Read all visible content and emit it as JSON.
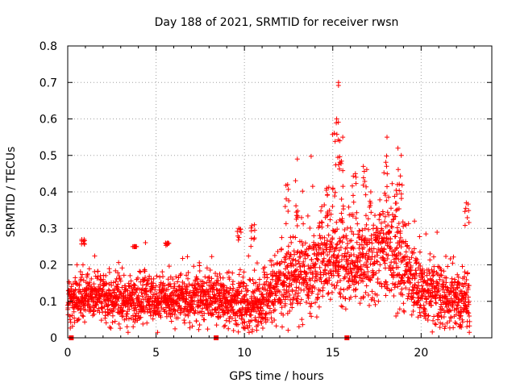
{
  "chart_data": {
    "type": "scatter",
    "title": "Day 188 of 2021, SRMTID for receiver rwsn",
    "xlabel": "GPS time / hours",
    "ylabel": "SRMTID / TECUs",
    "xlim": [
      0,
      24
    ],
    "ylim": [
      0,
      0.8
    ],
    "x_ticks": [
      0,
      5,
      10,
      15,
      20
    ],
    "y_ticks": [
      0,
      0.1,
      0.2,
      0.3,
      0.4,
      0.5,
      0.6,
      0.7,
      0.8
    ],
    "x_tick_labels": [
      "0",
      "5",
      "10",
      "15",
      "20"
    ],
    "y_tick_labels": [
      "0",
      "0.1",
      "0.2",
      "0.3",
      "0.4",
      "0.5",
      "0.6",
      "0.7",
      "0.8"
    ],
    "grid": true,
    "marker": "plus",
    "color": "#ff0000",
    "time_step_hours": 0.008,
    "time_start": 0.0,
    "time_end": 22.75,
    "baseline_profile": [
      {
        "x": 0.0,
        "y": 0.1
      },
      {
        "x": 1.0,
        "y": 0.12
      },
      {
        "x": 2.0,
        "y": 0.11
      },
      {
        "x": 3.0,
        "y": 0.1
      },
      {
        "x": 4.0,
        "y": 0.1
      },
      {
        "x": 5.0,
        "y": 0.11
      },
      {
        "x": 6.0,
        "y": 0.11
      },
      {
        "x": 7.0,
        "y": 0.1
      },
      {
        "x": 8.0,
        "y": 0.12
      },
      {
        "x": 9.0,
        "y": 0.1
      },
      {
        "x": 10.0,
        "y": 0.08
      },
      {
        "x": 11.0,
        "y": 0.1
      },
      {
        "x": 12.0,
        "y": 0.15
      },
      {
        "x": 13.0,
        "y": 0.18
      },
      {
        "x": 14.0,
        "y": 0.2
      },
      {
        "x": 15.0,
        "y": 0.22
      },
      {
        "x": 16.0,
        "y": 0.2
      },
      {
        "x": 17.0,
        "y": 0.22
      },
      {
        "x": 18.0,
        "y": 0.25
      },
      {
        "x": 19.0,
        "y": 0.2
      },
      {
        "x": 20.0,
        "y": 0.13
      },
      {
        "x": 21.0,
        "y": 0.12
      },
      {
        "x": 22.0,
        "y": 0.1
      },
      {
        "x": 22.75,
        "y": 0.1
      }
    ],
    "spread_profile": [
      {
        "x": 0.0,
        "y": 0.04
      },
      {
        "x": 11.5,
        "y": 0.045
      },
      {
        "x": 12.5,
        "y": 0.07
      },
      {
        "x": 14.0,
        "y": 0.08
      },
      {
        "x": 16.0,
        "y": 0.07
      },
      {
        "x": 18.5,
        "y": 0.09
      },
      {
        "x": 19.5,
        "y": 0.06
      },
      {
        "x": 22.75,
        "y": 0.045
      }
    ],
    "peaks": [
      {
        "x": 12.4,
        "y": 0.42
      },
      {
        "x": 13.0,
        "y": 0.49
      },
      {
        "x": 14.7,
        "y": 0.41
      },
      {
        "x": 15.1,
        "y": 0.6
      },
      {
        "x": 15.35,
        "y": 0.7
      },
      {
        "x": 15.45,
        "y": 0.55
      },
      {
        "x": 16.2,
        "y": 0.45
      },
      {
        "x": 16.8,
        "y": 0.47
      },
      {
        "x": 18.0,
        "y": 0.55
      },
      {
        "x": 18.6,
        "y": 0.52
      },
      {
        "x": 18.8,
        "y": 0.5
      },
      {
        "x": 22.6,
        "y": 0.37
      },
      {
        "x": 10.5,
        "y": 0.31
      },
      {
        "x": 9.7,
        "y": 0.3
      },
      {
        "x": 3.8,
        "y": 0.25
      },
      {
        "x": 5.6,
        "y": 0.26
      },
      {
        "x": 0.9,
        "y": 0.27
      }
    ],
    "gap_markers_x": [
      0.2,
      8.4,
      15.8
    ]
  }
}
